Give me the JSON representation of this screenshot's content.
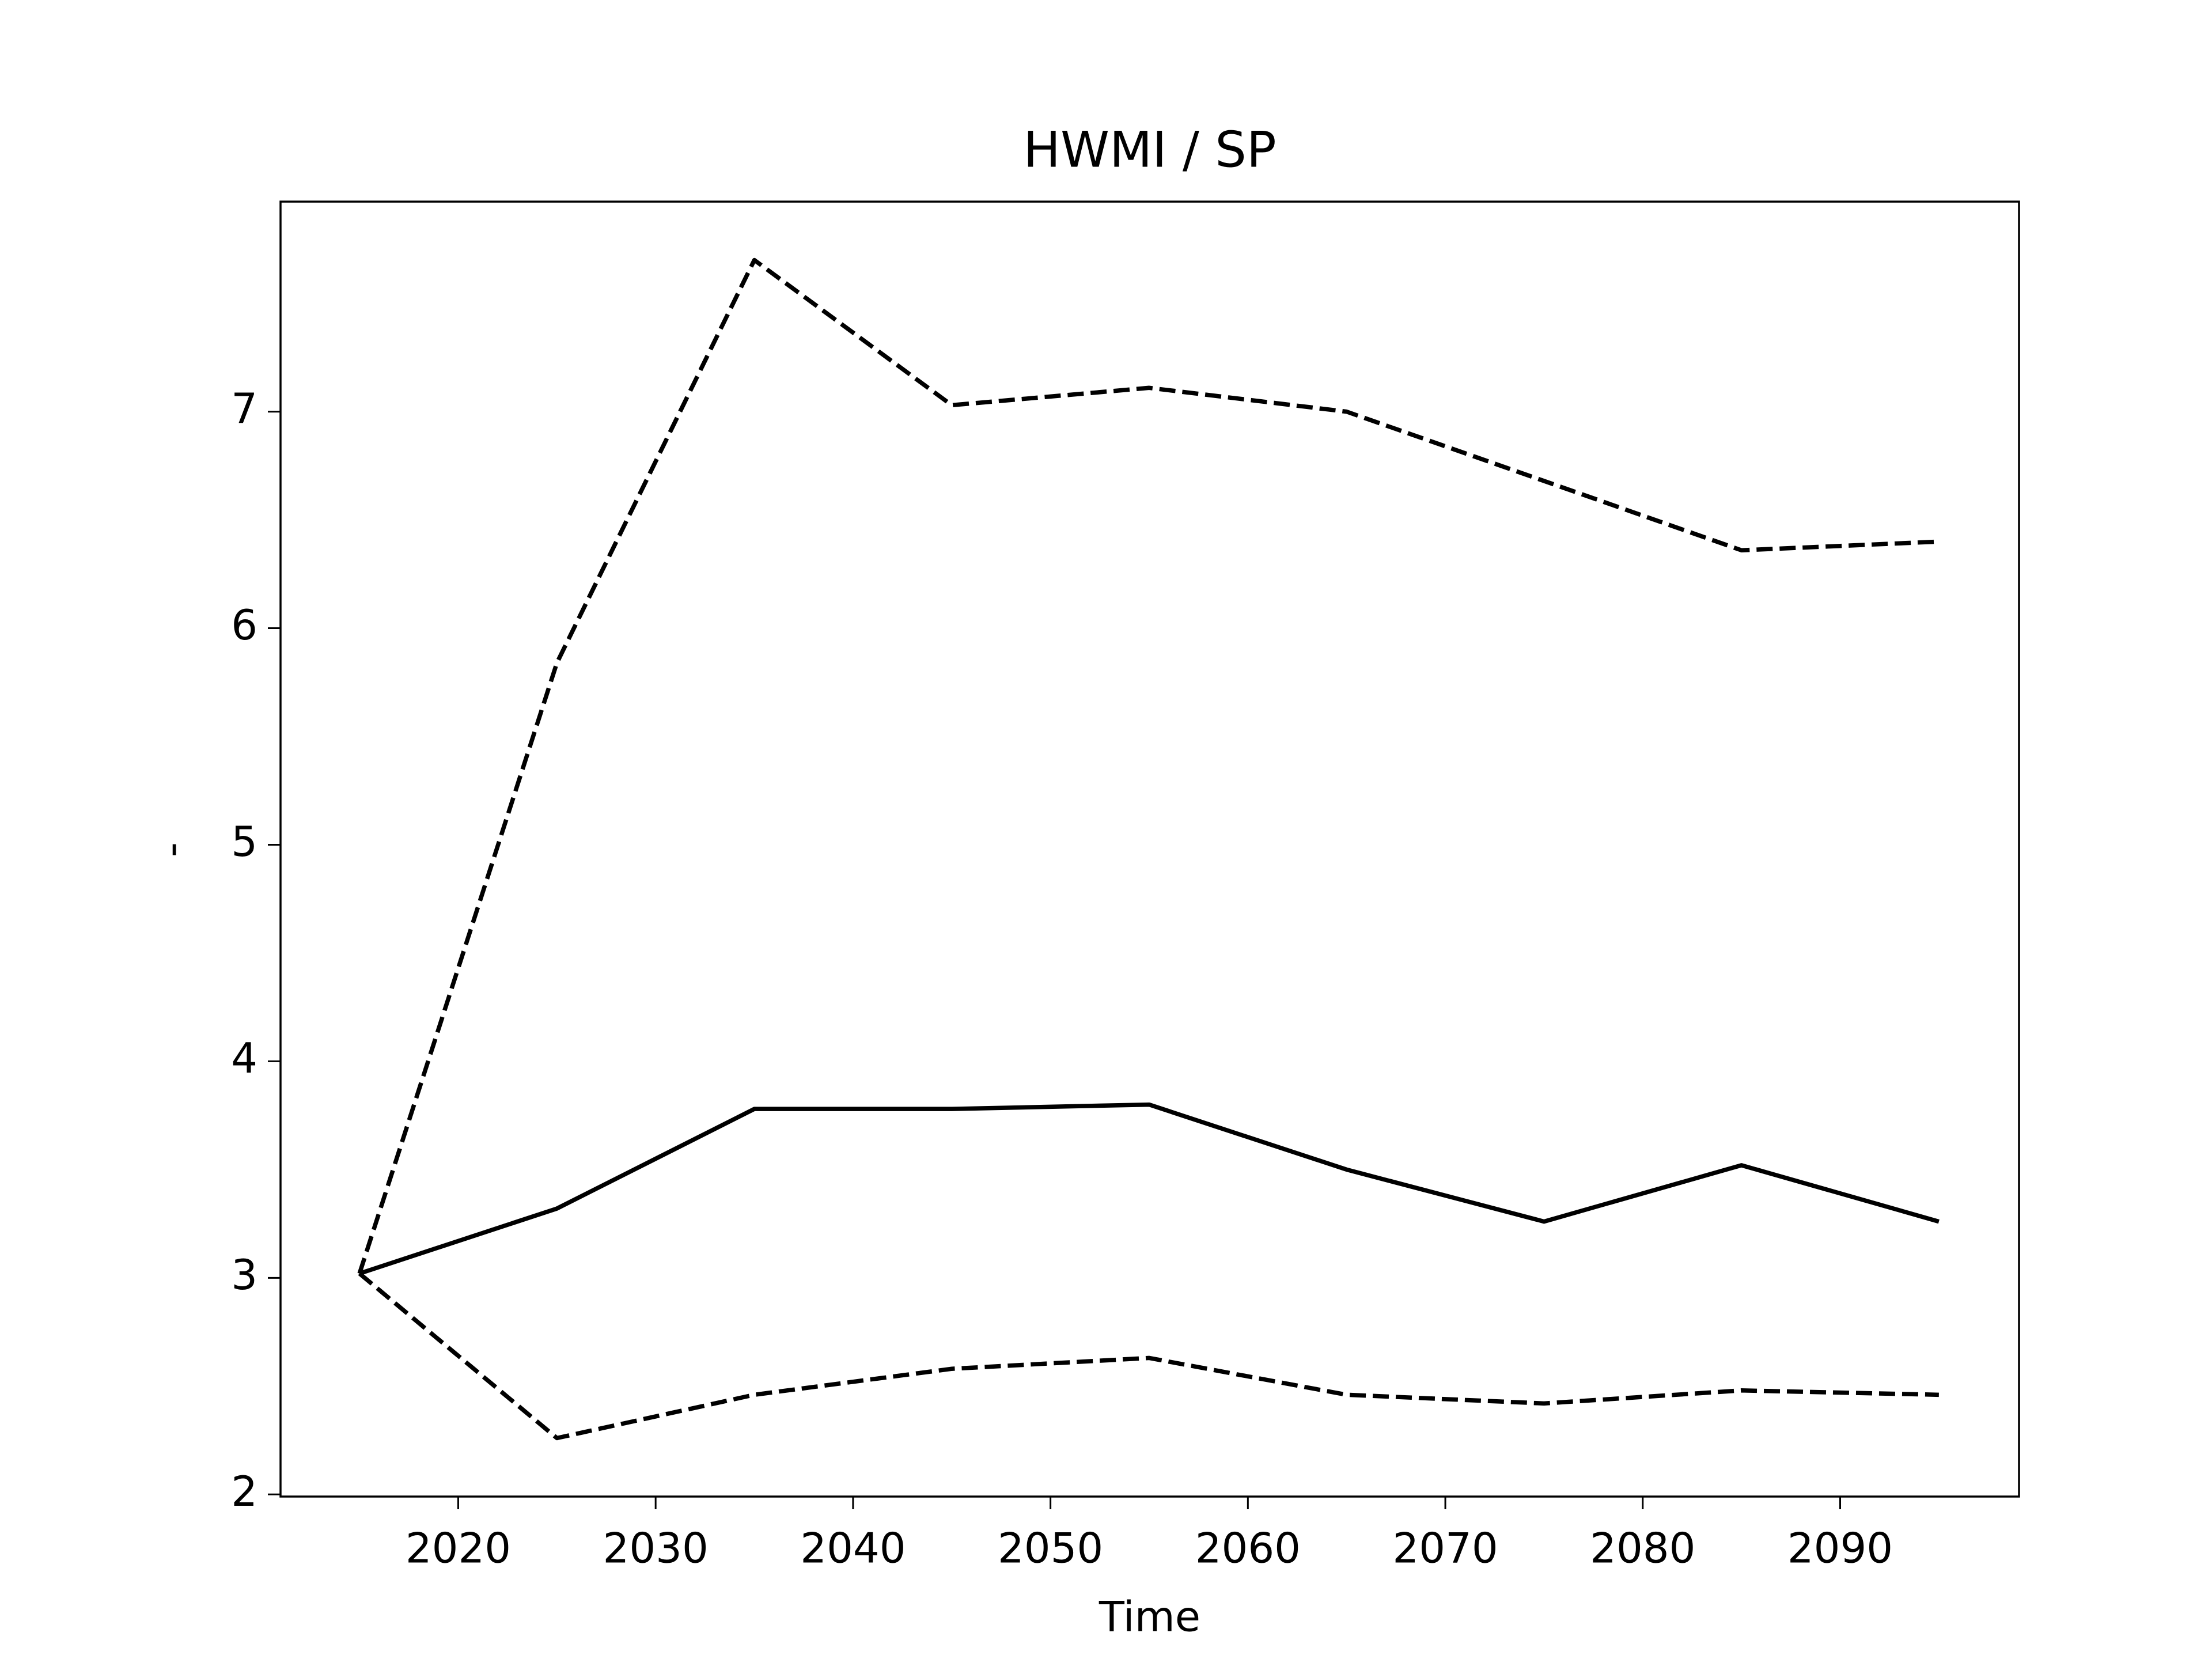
{
  "chart_data": {
    "type": "line",
    "title": "HWMI / SP",
    "x_label": "Time",
    "y_label": "-",
    "x": [
      2015,
      2025,
      2035,
      2045,
      2055,
      2065,
      2075,
      2085,
      2095
    ],
    "series": [
      {
        "color": "#000000",
        "style": "solid",
        "values": [
          3.02,
          3.32,
          3.78,
          3.78,
          3.8,
          3.5,
          3.26,
          3.52,
          3.26
        ]
      },
      {
        "color": "#000000",
        "style": "dashed",
        "values": [
          3.02,
          5.84,
          7.7,
          7.03,
          7.11,
          7.0,
          6.68,
          6.36,
          6.4
        ]
      },
      {
        "color": "#000000",
        "style": "dashed",
        "values": [
          3.02,
          2.26,
          2.46,
          2.58,
          2.63,
          2.46,
          2.42,
          2.48,
          2.46
        ]
      }
    ],
    "xlim": [
      2011,
      2099.06
    ],
    "ylim": [
      1.99,
      7.97
    ],
    "xticks": [
      2020,
      2030,
      2040,
      2050,
      2060,
      2070,
      2080,
      2090
    ],
    "yticks": [
      2,
      3,
      4,
      5,
      6,
      7
    ],
    "grid": false
  }
}
